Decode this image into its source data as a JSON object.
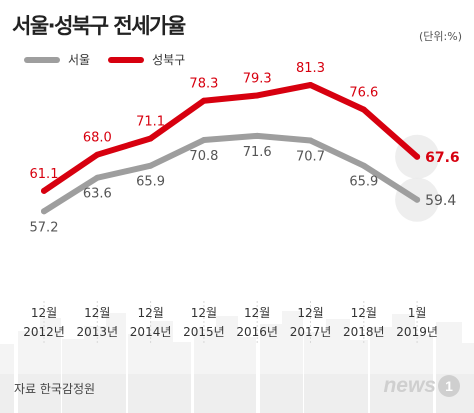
{
  "unit_label": "(단위:%)",
  "source": "자료 한국감정원",
  "watermark": {
    "text": "news",
    "badge": "1"
  },
  "colors": {
    "seoul": "#9e9e9e",
    "seongbuk": "#d7000f",
    "accent_circle": "#e8e8e8"
  },
  "chart_data": {
    "type": "line",
    "title": "서울·성북구 전세가율",
    "categories": [
      [
        "12월",
        "2012년"
      ],
      [
        "12월",
        "2013년"
      ],
      [
        "12월",
        "2014년"
      ],
      [
        "12월",
        "2015년"
      ],
      [
        "12월",
        "2016년"
      ],
      [
        "12월",
        "2017년"
      ],
      [
        "12월",
        "2018년"
      ],
      [
        "1월",
        "2019년"
      ]
    ],
    "series": [
      {
        "name": "서울",
        "values": [
          57.2,
          63.6,
          65.9,
          70.8,
          71.6,
          70.7,
          65.9,
          59.4
        ]
      },
      {
        "name": "성북구",
        "values": [
          61.1,
          68.0,
          71.1,
          78.3,
          79.3,
          81.3,
          76.6,
          67.6
        ]
      }
    ],
    "value_labels": {
      "서울": [
        "57.2",
        "63.6",
        "65.9",
        "70.8",
        "71.6",
        "70.7",
        "65.9",
        "59.4"
      ],
      "성북구": [
        "61.1",
        "68.0",
        "71.1",
        "78.3",
        "79.3",
        "81.3",
        "76.6",
        "67.6"
      ]
    },
    "legend_position": "top-left",
    "grid": false,
    "axes_visible": false
  }
}
